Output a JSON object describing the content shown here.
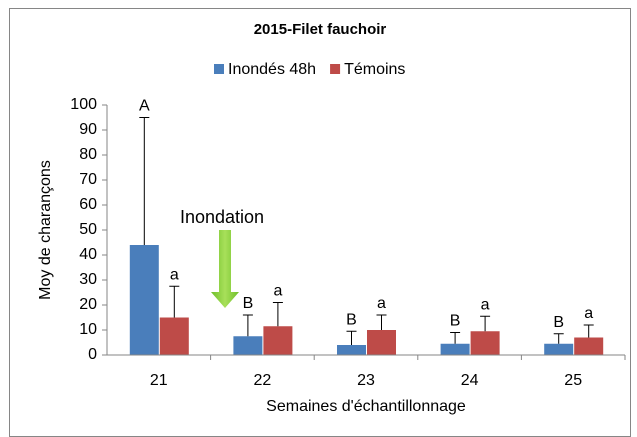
{
  "chart_data": {
    "type": "bar",
    "title": "2015-Filet fauchoir",
    "xlabel": "Semaines d'échantillonnage",
    "ylabel": "Moy de charançons",
    "annotation": "Inondation",
    "categories": [
      "21",
      "22",
      "23",
      "24",
      "25"
    ],
    "series": [
      {
        "name": "Inondés 48h",
        "color": "#4a7ebb",
        "values": [
          44,
          7.5,
          4,
          4.5,
          4.5
        ],
        "errors": [
          51,
          8.5,
          5.5,
          4.5,
          4
        ],
        "labels": [
          "A",
          "B",
          "B",
          "B",
          "B"
        ]
      },
      {
        "name": "Témoins",
        "color": "#be4b48",
        "values": [
          15,
          11.5,
          10,
          9.5,
          7
        ],
        "errors": [
          12.5,
          9.5,
          6,
          6,
          5
        ],
        "labels": [
          "a",
          "a",
          "a",
          "a",
          "a"
        ]
      }
    ],
    "ylim": [
      0,
      100
    ],
    "yticks": [
      0,
      10,
      20,
      30,
      40,
      50,
      60,
      70,
      80,
      90,
      100
    ],
    "grid": false,
    "legend": "top"
  }
}
